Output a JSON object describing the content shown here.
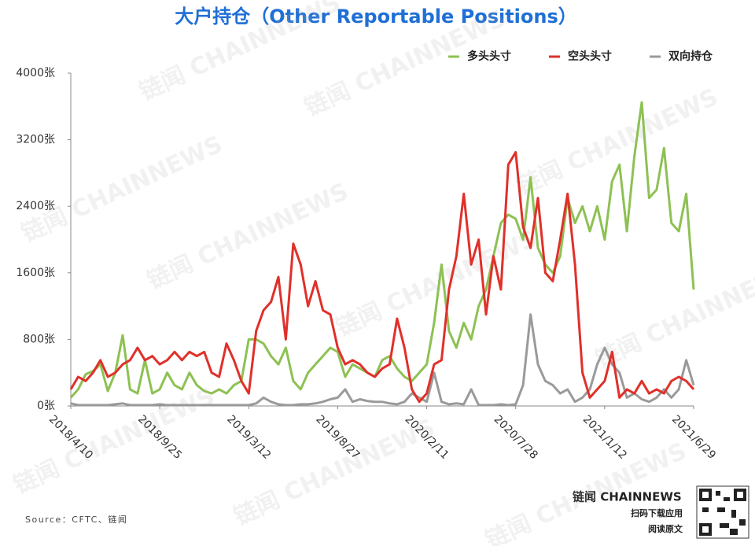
{
  "chart_data": {
    "type": "line",
    "title": "大户持仓（Other Reportable Positions）",
    "categories": [
      "2018/4/10",
      null,
      null,
      null,
      null,
      null,
      null,
      null,
      null,
      null,
      null,
      null,
      "2018/9/25",
      null,
      null,
      null,
      null,
      null,
      null,
      null,
      null,
      null,
      null,
      null,
      "2019/3/12",
      null,
      null,
      null,
      null,
      null,
      null,
      null,
      null,
      null,
      null,
      null,
      "2019/8/27",
      null,
      null,
      null,
      null,
      null,
      null,
      null,
      null,
      null,
      null,
      null,
      "2020/2/11",
      null,
      null,
      null,
      null,
      null,
      null,
      null,
      null,
      null,
      null,
      null,
      "2020/7/28",
      null,
      null,
      null,
      null,
      null,
      null,
      null,
      null,
      null,
      null,
      null,
      "2021/1/12",
      null,
      null,
      null,
      null,
      null,
      null,
      null,
      null,
      null,
      null,
      null,
      "2021/6/29"
    ],
    "series": [
      {
        "name": "多头头寸",
        "color": "#8dc153",
        "values": [
          100,
          200,
          380,
          420,
          500,
          180,
          400,
          850,
          200,
          150,
          550,
          150,
          200,
          400,
          250,
          200,
          400,
          250,
          180,
          150,
          200,
          150,
          250,
          300,
          800,
          800,
          750,
          600,
          500,
          700,
          300,
          200,
          400,
          500,
          600,
          700,
          650,
          350,
          500,
          450,
          400,
          350,
          550,
          600,
          450,
          350,
          300,
          400,
          500,
          1000,
          1700,
          900,
          700,
          1000,
          800,
          1200,
          1400,
          1800,
          2200,
          2300,
          2250,
          2000,
          2750,
          1900,
          1700,
          1600,
          1800,
          2500,
          2200,
          2400,
          2100,
          2400,
          2000,
          2700,
          2900,
          2100,
          3000,
          3650,
          2500,
          2600,
          3100,
          2200,
          2100,
          2550,
          1400
        ]
      },
      {
        "name": "空头头寸",
        "color": "#e0302a",
        "values": [
          200,
          350,
          300,
          400,
          550,
          350,
          400,
          500,
          550,
          700,
          550,
          600,
          500,
          550,
          650,
          550,
          650,
          600,
          650,
          400,
          350,
          750,
          550,
          300,
          150,
          900,
          1150,
          1250,
          1550,
          800,
          1950,
          1700,
          1200,
          1500,
          1150,
          1100,
          700,
          500,
          550,
          500,
          400,
          350,
          450,
          500,
          1050,
          700,
          200,
          50,
          150,
          500,
          550,
          1400,
          1800,
          2550,
          1700,
          2000,
          1100,
          1800,
          1400,
          2900,
          3050,
          2150,
          1900,
          2500,
          1600,
          1500,
          2000,
          2550,
          1700,
          400,
          100,
          200,
          300,
          650,
          100,
          200,
          150,
          300,
          150,
          200,
          150,
          300,
          350,
          300,
          200
        ]
      },
      {
        "name": "双向持仓",
        "color": "#9a9a9a",
        "values": [
          30,
          10,
          10,
          10,
          10,
          10,
          20,
          30,
          10,
          10,
          10,
          10,
          20,
          10,
          10,
          10,
          10,
          10,
          10,
          10,
          10,
          10,
          10,
          10,
          10,
          30,
          100,
          50,
          20,
          10,
          10,
          20,
          20,
          30,
          50,
          80,
          100,
          200,
          50,
          80,
          60,
          50,
          50,
          30,
          20,
          50,
          150,
          100,
          50,
          400,
          50,
          20,
          30,
          20,
          200,
          10,
          10,
          10,
          20,
          10,
          20,
          250,
          1100,
          500,
          300,
          250,
          150,
          200,
          50,
          100,
          200,
          500,
          700,
          500,
          400,
          100,
          150,
          80,
          50,
          100,
          200,
          100,
          200,
          550,
          250
        ]
      }
    ],
    "ylim": [
      0,
      4000
    ],
    "yticks": [
      {
        "value": 0,
        "label": "0张"
      },
      {
        "value": 800,
        "label": "800张"
      },
      {
        "value": 1600,
        "label": "1600张"
      },
      {
        "value": 2400,
        "label": "2400张"
      },
      {
        "value": 3200,
        "label": "3200张"
      },
      {
        "value": 4000,
        "label": "4000张"
      }
    ],
    "legend": "top-right",
    "source": "Source：CFTC、链闻",
    "watermark": "链闻 CHAINNEWS",
    "brand": "链闻 CHAINNEWS",
    "brand_line1": "扫码下载应用",
    "brand_line2": "阅读原文"
  }
}
